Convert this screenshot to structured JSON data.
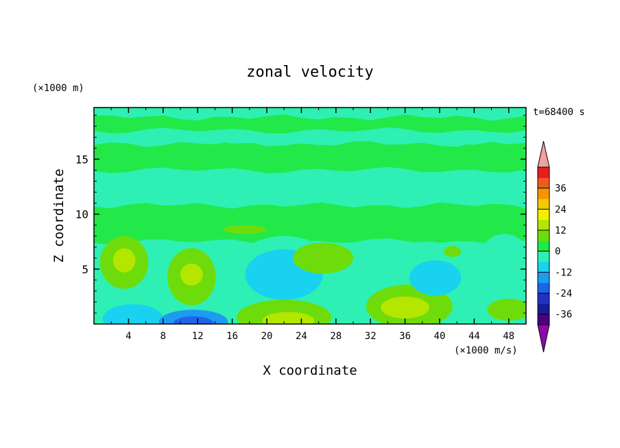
{
  "chart_data": {
    "type": "heatmap",
    "title": "zonal velocity",
    "xlabel": "X coordinate",
    "ylabel": "Z coordinate",
    "y_unit": "(×1000 m)",
    "x_unit": "(×1000 m/s)",
    "time_label": "t=68400 s",
    "xlim": [
      0,
      50
    ],
    "ylim": [
      0,
      19.7
    ],
    "xticks": [
      4,
      8,
      12,
      16,
      20,
      24,
      28,
      32,
      36,
      40,
      44,
      48
    ],
    "yticks": [
      5,
      10,
      15
    ],
    "colorbar": {
      "levels": [
        -42,
        -36,
        -30,
        -24,
        -18,
        -12,
        -6,
        0,
        6,
        12,
        18,
        24,
        30,
        36,
        42
      ],
      "colors": [
        "#4b0082",
        "#1a1a9a",
        "#1e32c8",
        "#1e64e6",
        "#1e9bf0",
        "#19d2f0",
        "#2ef0b4",
        "#23e84a",
        "#6edc0a",
        "#b4e600",
        "#f0f000",
        "#f5c800",
        "#f59600",
        "#f05a1e",
        "#e61e1e"
      ],
      "under_color": "#8c0aaa",
      "over_color": "#f5a0a0",
      "tick_labels": [
        "36",
        "24",
        "12",
        "0",
        "-12",
        "-24",
        "-36"
      ],
      "tick_values": [
        36,
        24,
        12,
        0,
        -12,
        -24,
        -36
      ]
    },
    "regions": [
      {
        "level": -12,
        "cx": 4.5,
        "cy": 0.5,
        "rx": 3.5,
        "ry": 1.3
      },
      {
        "level": -24,
        "cx": 11.5,
        "cy": 0.1,
        "rx": 2.3,
        "ry": 0.6
      },
      {
        "level": -18,
        "cx": 11.5,
        "cy": 0.2,
        "rx": 4.0,
        "ry": 1.1
      },
      {
        "level": 6,
        "cx": 3.5,
        "cy": 5.6,
        "rx": 2.8,
        "ry": 2.4
      },
      {
        "level": 12,
        "cx": 3.5,
        "cy": 5.8,
        "rx": 1.3,
        "ry": 1.1
      },
      {
        "level": 6,
        "cx": 11.3,
        "cy": 4.3,
        "rx": 2.8,
        "ry": 2.6
      },
      {
        "level": 12,
        "cx": 11.3,
        "cy": 4.5,
        "rx": 1.3,
        "ry": 1.0
      },
      {
        "level": -12,
        "cx": 22,
        "cy": 4.5,
        "rx": 4.5,
        "ry": 2.3
      },
      {
        "level": -6,
        "cx": 22,
        "cy": 4.2,
        "rx": 6.5,
        "ry": 3.8
      },
      {
        "level": 6,
        "cx": 22,
        "cy": 0.6,
        "rx": 5.5,
        "ry": 1.6
      },
      {
        "level": 12,
        "cx": 22.5,
        "cy": 0.3,
        "rx": 3.0,
        "ry": 0.8
      },
      {
        "level": 6,
        "cx": 26.5,
        "cy": 6.0,
        "rx": 3.5,
        "ry": 1.4
      },
      {
        "level": 6,
        "cx": 36.5,
        "cy": 1.6,
        "rx": 5.0,
        "ry": 2.0
      },
      {
        "level": 12,
        "cx": 36,
        "cy": 1.5,
        "rx": 2.8,
        "ry": 1.0
      },
      {
        "level": -12,
        "cx": 39.5,
        "cy": 4.2,
        "rx": 3.0,
        "ry": 1.6
      },
      {
        "level": -6,
        "cx": 38.5,
        "cy": 4.5,
        "rx": 5.5,
        "ry": 3.0
      },
      {
        "level": -6,
        "cx": 47.5,
        "cy": 5.8,
        "rx": 3.0,
        "ry": 2.4
      },
      {
        "level": 6,
        "cx": 48,
        "cy": 1.3,
        "rx": 2.5,
        "ry": 1.0
      },
      {
        "level": 6,
        "cx": 41.5,
        "cy": 6.6,
        "rx": 1.0,
        "ry": 0.5
      },
      {
        "level": 6,
        "cx": 17.5,
        "cy": 8.6,
        "rx": 2.5,
        "ry": 0.4
      }
    ],
    "bands": [
      {
        "level": 0,
        "y0": 7.5,
        "y1": 10.8
      },
      {
        "level": -6,
        "y0": 11.2,
        "y1": 13.6
      },
      {
        "level": 0,
        "y0": 14.0,
        "y1": 16.4
      },
      {
        "level": -6,
        "y0": 16.6,
        "y1": 19.7
      },
      {
        "level": 0,
        "y0": 17.6,
        "y1": 18.8
      }
    ]
  }
}
